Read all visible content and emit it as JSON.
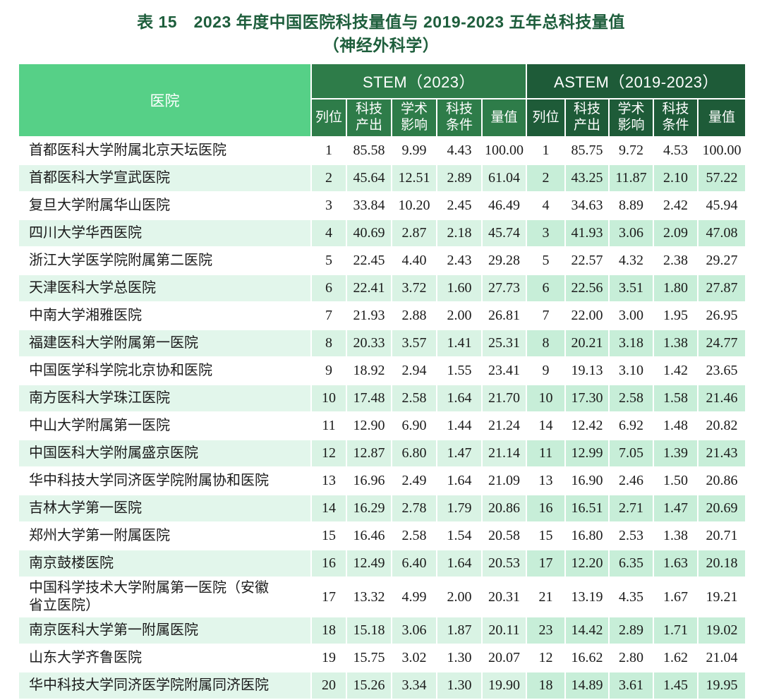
{
  "title": {
    "line1": "表 15　2023 年度中国医院科技量值与 2019-2023 五年总科技量值",
    "line2": "（神经外科学）"
  },
  "table": {
    "hospital_header": "医院",
    "groups": [
      {
        "title": "STEM（2023）"
      },
      {
        "title": "ASTEM（2019-2023）"
      }
    ],
    "sub_headers": [
      "列位",
      "科技\n产出",
      "学术\n影响",
      "科技\n条件",
      "量值"
    ],
    "rows": [
      {
        "hospital": "首都医科大学附属北京天坛医院",
        "stem": [
          "1",
          "85.58",
          "9.99",
          "4.43",
          "100.00"
        ],
        "astem": [
          "1",
          "85.75",
          "9.72",
          "4.53",
          "100.00"
        ]
      },
      {
        "hospital": "首都医科大学宣武医院",
        "stem": [
          "2",
          "45.64",
          "12.51",
          "2.89",
          "61.04"
        ],
        "astem": [
          "2",
          "43.25",
          "11.87",
          "2.10",
          "57.22"
        ]
      },
      {
        "hospital": "复旦大学附属华山医院",
        "stem": [
          "3",
          "33.84",
          "10.20",
          "2.45",
          "46.49"
        ],
        "astem": [
          "4",
          "34.63",
          "8.89",
          "2.42",
          "45.94"
        ]
      },
      {
        "hospital": "四川大学华西医院",
        "stem": [
          "4",
          "40.69",
          "2.87",
          "2.18",
          "45.74"
        ],
        "astem": [
          "3",
          "41.93",
          "3.06",
          "2.09",
          "47.08"
        ]
      },
      {
        "hospital": "浙江大学医学院附属第二医院",
        "stem": [
          "5",
          "22.45",
          "4.40",
          "2.43",
          "29.28"
        ],
        "astem": [
          "5",
          "22.57",
          "4.32",
          "2.38",
          "29.27"
        ]
      },
      {
        "hospital": "天津医科大学总医院",
        "stem": [
          "6",
          "22.41",
          "3.72",
          "1.60",
          "27.73"
        ],
        "astem": [
          "6",
          "22.56",
          "3.51",
          "1.80",
          "27.87"
        ]
      },
      {
        "hospital": "中南大学湘雅医院",
        "stem": [
          "7",
          "21.93",
          "2.88",
          "2.00",
          "26.81"
        ],
        "astem": [
          "7",
          "22.00",
          "3.00",
          "1.95",
          "26.95"
        ]
      },
      {
        "hospital": "福建医科大学附属第一医院",
        "stem": [
          "8",
          "20.33",
          "3.57",
          "1.41",
          "25.31"
        ],
        "astem": [
          "8",
          "20.21",
          "3.18",
          "1.38",
          "24.77"
        ]
      },
      {
        "hospital": "中国医学科学院北京协和医院",
        "stem": [
          "9",
          "18.92",
          "2.94",
          "1.55",
          "23.41"
        ],
        "astem": [
          "9",
          "19.13",
          "3.10",
          "1.42",
          "23.65"
        ]
      },
      {
        "hospital": "南方医科大学珠江医院",
        "stem": [
          "10",
          "17.48",
          "2.58",
          "1.64",
          "21.70"
        ],
        "astem": [
          "10",
          "17.30",
          "2.58",
          "1.58",
          "21.46"
        ]
      },
      {
        "hospital": "中山大学附属第一医院",
        "stem": [
          "11",
          "12.90",
          "6.90",
          "1.44",
          "21.24"
        ],
        "astem": [
          "14",
          "12.42",
          "6.92",
          "1.48",
          "20.82"
        ]
      },
      {
        "hospital": "中国医科大学附属盛京医院",
        "stem": [
          "12",
          "12.87",
          "6.80",
          "1.47",
          "21.14"
        ],
        "astem": [
          "11",
          "12.99",
          "7.05",
          "1.39",
          "21.43"
        ]
      },
      {
        "hospital": "华中科技大学同济医学院附属协和医院",
        "stem": [
          "13",
          "16.96",
          "2.49",
          "1.64",
          "21.09"
        ],
        "astem": [
          "13",
          "16.90",
          "2.46",
          "1.50",
          "20.86"
        ]
      },
      {
        "hospital": "吉林大学第一医院",
        "stem": [
          "14",
          "16.29",
          "2.78",
          "1.79",
          "20.86"
        ],
        "astem": [
          "16",
          "16.51",
          "2.71",
          "1.47",
          "20.69"
        ]
      },
      {
        "hospital": "郑州大学第一附属医院",
        "stem": [
          "15",
          "16.46",
          "2.58",
          "1.54",
          "20.58"
        ],
        "astem": [
          "15",
          "16.80",
          "2.53",
          "1.38",
          "20.71"
        ]
      },
      {
        "hospital": "南京鼓楼医院",
        "stem": [
          "16",
          "12.49",
          "6.40",
          "1.64",
          "20.53"
        ],
        "astem": [
          "17",
          "12.20",
          "6.35",
          "1.63",
          "20.18"
        ]
      },
      {
        "hospital": "中国科学技术大学附属第一医院（安徽省立医院）",
        "stem": [
          "17",
          "13.32",
          "4.99",
          "2.00",
          "20.31"
        ],
        "astem": [
          "21",
          "13.19",
          "4.35",
          "1.67",
          "19.21"
        ]
      },
      {
        "hospital": "南京医科大学第一附属医院",
        "stem": [
          "18",
          "15.18",
          "3.06",
          "1.87",
          "20.11"
        ],
        "astem": [
          "23",
          "14.42",
          "2.89",
          "1.71",
          "19.02"
        ]
      },
      {
        "hospital": "山东大学齐鲁医院",
        "stem": [
          "19",
          "15.75",
          "3.02",
          "1.30",
          "20.07"
        ],
        "astem": [
          "12",
          "16.62",
          "2.80",
          "1.62",
          "21.04"
        ]
      },
      {
        "hospital": "华中科技大学同济医学院附属同济医院",
        "stem": [
          "20",
          "15.26",
          "3.34",
          "1.30",
          "19.90"
        ],
        "astem": [
          "18",
          "14.89",
          "3.61",
          "1.45",
          "19.95"
        ]
      }
    ]
  },
  "colors": {
    "title_text": "#1e5e3c",
    "hospital_header_bg": "#56d087",
    "stem_header_bg": "#2e7c49",
    "astem_header_bg": "#1e5b38",
    "alt_row_name_bg": "#e2f6eb",
    "alt_row_stem_bg": "#d9f3e4",
    "alt_row_astem_bg": "#c7eed8",
    "header_text": "#ffffff",
    "body_text": "#1b1b1b"
  }
}
